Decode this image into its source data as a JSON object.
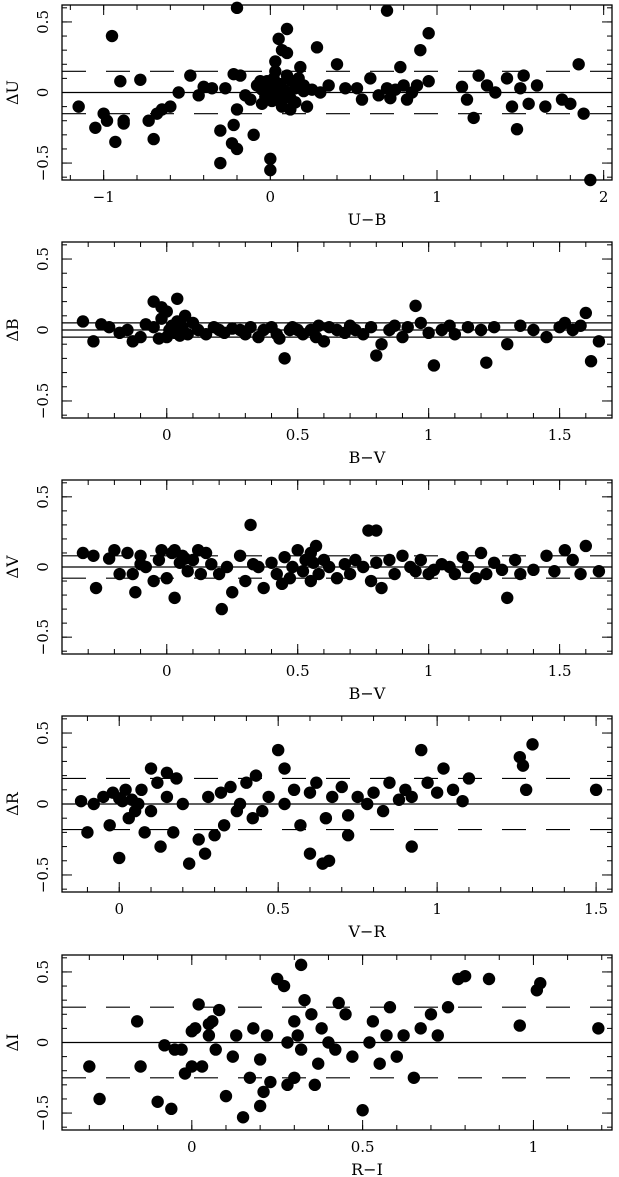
{
  "chart_data": [
    {
      "type": "scatter",
      "xlabel": "U−B",
      "ylabel": "ΔU",
      "xlim": [
        -1.25,
        2.05
      ],
      "ylim": [
        -0.62,
        0.62
      ],
      "xticks": [
        -1,
        0,
        1,
        2
      ],
      "xtick_labels": [
        "−1",
        "0",
        "1",
        "2"
      ],
      "yticks": [
        -0.5,
        0,
        0.5
      ],
      "ytick_labels": [
        "−0.5",
        "0",
        "0.5"
      ],
      "reference_lines": [
        {
          "y": 0,
          "style": "solid"
        },
        {
          "y": 0.15,
          "style": "dashed"
        },
        {
          "y": -0.15,
          "style": "dashed"
        }
      ],
      "x": [
        -0.95,
        -0.9,
        -0.88,
        -0.2,
        0.05,
        0.1,
        0.7,
        0.95,
        -1.15,
        -1.05,
        -1.0,
        -0.98,
        -0.93,
        -0.88,
        -0.78,
        -0.73,
        -0.68,
        -0.6,
        -0.55,
        -0.48,
        -0.43,
        -0.4,
        -0.35,
        -0.3,
        -0.27,
        -0.22,
        -0.22,
        -0.2,
        -0.18,
        -0.15,
        -0.12,
        -0.1,
        -0.08,
        -0.05,
        -0.05,
        -0.03,
        -0.02,
        -0.01,
        0.0,
        0.0,
        0.01,
        0.02,
        0.03,
        0.03,
        0.04,
        0.05,
        0.06,
        0.07,
        0.08,
        0.1,
        0.1,
        0.12,
        0.13,
        0.15,
        0.15,
        0.17,
        0.18,
        0.2,
        0.22,
        0.25,
        0.28,
        0.3,
        0.35,
        0.4,
        0.45,
        0.52,
        0.55,
        0.6,
        0.65,
        0.7,
        0.72,
        0.75,
        0.78,
        0.8,
        0.82,
        0.85,
        0.88,
        0.9,
        0.95,
        1.15,
        1.18,
        1.22,
        1.25,
        1.3,
        1.35,
        1.42,
        1.45,
        1.48,
        1.5,
        1.52,
        1.55,
        1.6,
        1.65,
        1.75,
        1.8,
        1.85,
        1.88,
        1.92,
        0.03,
        0.07,
        0.1,
        -0.3,
        -0.2,
        -0.23,
        -0.06,
        0.06,
        0.12,
        0.2,
        -0.7,
        -0.65,
        0.0
      ],
      "y": [
        0.4,
        0.08,
        -0.2,
        0.6,
        0.38,
        0.45,
        0.58,
        0.42,
        -0.1,
        -0.25,
        -0.15,
        -0.2,
        -0.35,
        -0.22,
        0.09,
        -0.2,
        -0.15,
        -0.1,
        0.0,
        0.12,
        -0.02,
        0.04,
        0.03,
        -0.5,
        0.03,
        0.13,
        -0.23,
        -0.4,
        0.12,
        -0.02,
        -0.05,
        -0.3,
        0.05,
        -0.08,
        0.02,
        -0.03,
        0.08,
        0.0,
        -0.55,
        0.03,
        -0.06,
        0.1,
        0.15,
        -0.02,
        0.05,
        -0.05,
        0.06,
        -0.1,
        0.02,
        0.0,
        0.12,
        -0.04,
        0.08,
        0.03,
        -0.07,
        0.1,
        0.18,
        0.05,
        -0.1,
        0.02,
        0.32,
        0.0,
        0.05,
        0.2,
        0.03,
        0.03,
        -0.05,
        0.1,
        -0.02,
        0.03,
        -0.04,
        0.02,
        0.18,
        0.05,
        -0.05,
        0.0,
        0.05,
        0.3,
        0.08,
        0.04,
        -0.05,
        -0.18,
        0.12,
        0.05,
        0.0,
        0.1,
        -0.1,
        -0.26,
        0.03,
        0.12,
        -0.08,
        0.05,
        -0.1,
        -0.05,
        -0.08,
        0.2,
        -0.15,
        -0.62,
        0.22,
        0.3,
        0.28,
        -0.27,
        -0.12,
        -0.36,
        0.08,
        -0.05,
        -0.12,
        0.01,
        -0.33,
        -0.12,
        -0.47
      ]
    },
    {
      "type": "scatter",
      "xlabel": "B−V",
      "ylabel": "ΔB",
      "xlim": [
        -0.4,
        1.7
      ],
      "ylim": [
        -0.62,
        0.62
      ],
      "xticks": [
        0,
        0.5,
        1,
        1.5
      ],
      "xtick_labels": [
        "0",
        "0.5",
        "1",
        "1.5"
      ],
      "yticks": [
        -0.5,
        0,
        0.5
      ],
      "ytick_labels": [
        "−0.5",
        "0",
        "0.5"
      ],
      "reference_lines": [
        {
          "y": 0,
          "style": "solid"
        },
        {
          "y": 0.05,
          "style": "solid"
        },
        {
          "y": -0.05,
          "style": "solid"
        }
      ],
      "x": [
        -0.32,
        -0.28,
        -0.25,
        -0.22,
        -0.18,
        -0.15,
        -0.13,
        -0.1,
        -0.08,
        -0.05,
        -0.03,
        -0.02,
        0.0,
        0.01,
        0.02,
        0.03,
        0.04,
        0.05,
        0.06,
        0.07,
        0.08,
        0.1,
        0.12,
        0.15,
        0.18,
        0.2,
        0.22,
        0.25,
        0.28,
        0.3,
        0.32,
        0.35,
        0.37,
        0.4,
        0.42,
        0.43,
        0.45,
        0.47,
        0.48,
        0.5,
        0.52,
        0.55,
        0.57,
        0.58,
        0.6,
        0.62,
        0.65,
        0.68,
        0.7,
        0.72,
        0.75,
        0.78,
        0.8,
        0.82,
        0.85,
        0.87,
        0.9,
        0.92,
        0.95,
        0.97,
        1.0,
        1.02,
        1.05,
        1.08,
        1.1,
        1.15,
        1.2,
        1.22,
        1.25,
        1.3,
        1.35,
        1.4,
        1.45,
        1.5,
        1.52,
        1.55,
        1.58,
        1.6,
        1.62,
        1.65,
        -0.05,
        -0.02,
        0.04,
        0.0
      ],
      "y": [
        0.06,
        -0.08,
        0.04,
        0.02,
        -0.02,
        0.0,
        -0.08,
        -0.05,
        0.04,
        0.02,
        -0.06,
        0.08,
        -0.05,
        0.0,
        0.03,
        -0.02,
        0.06,
        -0.04,
        0.02,
        0.1,
        -0.03,
        0.05,
        0.0,
        -0.03,
        0.02,
        0.0,
        -0.02,
        0.01,
        0.0,
        -0.03,
        0.02,
        -0.05,
        0.0,
        0.02,
        -0.03,
        -0.06,
        -0.2,
        0.0,
        0.02,
        0.0,
        -0.03,
        0.0,
        -0.05,
        0.03,
        -0.08,
        0.02,
        0.0,
        -0.02,
        0.03,
        0.0,
        -0.03,
        0.02,
        -0.18,
        -0.1,
        0.0,
        0.03,
        -0.05,
        0.02,
        0.17,
        0.05,
        -0.02,
        -0.25,
        0.0,
        0.03,
        -0.03,
        0.02,
        0.0,
        -0.23,
        0.02,
        -0.1,
        0.03,
        0.0,
        -0.05,
        0.02,
        0.05,
        0.0,
        0.03,
        0.12,
        -0.22,
        -0.08,
        0.2,
        0.16,
        0.22,
        0.13
      ]
    },
    {
      "type": "scatter",
      "xlabel": "B−V",
      "ylabel": "ΔV",
      "xlim": [
        -0.4,
        1.7
      ],
      "ylim": [
        -0.62,
        0.62
      ],
      "xticks": [
        0,
        0.5,
        1,
        1.5
      ],
      "xtick_labels": [
        "0",
        "0.5",
        "1",
        "1.5"
      ],
      "yticks": [
        -0.5,
        0,
        0.5
      ],
      "ytick_labels": [
        "−0.5",
        "0",
        "0.5"
      ],
      "reference_lines": [
        {
          "y": 0,
          "style": "solid"
        },
        {
          "y": 0.08,
          "style": "dashed"
        },
        {
          "y": -0.08,
          "style": "dashed"
        }
      ],
      "x": [
        0.32,
        0.77,
        0.8,
        -0.32,
        -0.28,
        -0.27,
        -0.22,
        -0.2,
        -0.18,
        -0.15,
        -0.13,
        -0.12,
        -0.1,
        -0.08,
        -0.05,
        -0.03,
        -0.02,
        0.0,
        0.02,
        0.03,
        0.05,
        0.06,
        0.08,
        0.1,
        0.12,
        0.13,
        0.15,
        0.17,
        0.2,
        0.21,
        0.23,
        0.25,
        0.28,
        0.3,
        0.33,
        0.35,
        0.37,
        0.4,
        0.42,
        0.44,
        0.45,
        0.47,
        0.48,
        0.5,
        0.52,
        0.53,
        0.55,
        0.56,
        0.57,
        0.58,
        0.6,
        0.62,
        0.65,
        0.68,
        0.7,
        0.72,
        0.75,
        0.78,
        0.8,
        0.82,
        0.85,
        0.87,
        0.9,
        0.93,
        0.95,
        0.97,
        1.0,
        1.02,
        1.05,
        1.08,
        1.1,
        1.13,
        1.15,
        1.18,
        1.2,
        1.22,
        1.25,
        1.28,
        1.3,
        1.33,
        1.35,
        1.4,
        1.45,
        1.48,
        1.52,
        1.55,
        1.58,
        1.6,
        1.65,
        0.03,
        0.07,
        0.55,
        -0.1
      ],
      "y": [
        0.3,
        0.26,
        0.26,
        0.1,
        0.08,
        -0.15,
        0.06,
        0.12,
        -0.05,
        0.1,
        -0.05,
        -0.18,
        0.08,
        0.0,
        -0.1,
        0.05,
        0.12,
        -0.08,
        0.1,
        -0.22,
        0.03,
        0.08,
        -0.03,
        0.05,
        0.12,
        -0.05,
        0.1,
        0.02,
        -0.05,
        -0.3,
        0.0,
        -0.18,
        0.08,
        -0.1,
        0.02,
        0.0,
        -0.15,
        0.03,
        -0.05,
        -0.12,
        0.07,
        -0.08,
        0.0,
        0.12,
        -0.03,
        0.05,
        -0.1,
        0.03,
        0.15,
        -0.05,
        0.05,
        0.0,
        -0.08,
        0.02,
        -0.05,
        0.05,
        0.0,
        -0.1,
        0.03,
        -0.15,
        0.05,
        -0.05,
        0.08,
        0.0,
        -0.03,
        0.05,
        -0.05,
        -0.02,
        0.02,
        0.0,
        -0.05,
        0.07,
        0.0,
        -0.08,
        0.1,
        -0.05,
        0.03,
        -0.02,
        -0.22,
        0.05,
        -0.05,
        -0.02,
        0.08,
        -0.03,
        0.12,
        0.05,
        -0.05,
        0.15,
        -0.03,
        0.12,
        0.06,
        0.1,
        0.02
      ]
    },
    {
      "type": "scatter",
      "xlabel": "V−R",
      "ylabel": "ΔR",
      "xlim": [
        -0.18,
        1.55
      ],
      "ylim": [
        -0.62,
        0.62
      ],
      "xticks": [
        0,
        0.5,
        1,
        1.5
      ],
      "xtick_labels": [
        "0",
        "0.5",
        "1",
        "1.5"
      ],
      "yticks": [
        -0.5,
        0,
        0.5
      ],
      "ytick_labels": [
        "−0.5",
        "0",
        "0.5"
      ],
      "reference_lines": [
        {
          "y": 0,
          "style": "solid"
        },
        {
          "y": 0.18,
          "style": "dashed"
        },
        {
          "y": -0.18,
          "style": "dashed"
        }
      ],
      "x": [
        -0.12,
        -0.1,
        -0.08,
        -0.05,
        -0.03,
        -0.02,
        0.0,
        0.0,
        0.01,
        0.02,
        0.03,
        0.04,
        0.05,
        0.06,
        0.07,
        0.08,
        0.1,
        0.1,
        0.12,
        0.13,
        0.15,
        0.15,
        0.17,
        0.18,
        0.2,
        0.22,
        0.25,
        0.27,
        0.28,
        0.3,
        0.32,
        0.33,
        0.35,
        0.37,
        0.38,
        0.4,
        0.42,
        0.43,
        0.45,
        0.47,
        0.5,
        0.52,
        0.55,
        0.57,
        0.6,
        0.62,
        0.65,
        0.67,
        0.7,
        0.72,
        0.75,
        0.78,
        0.8,
        0.83,
        0.85,
        0.88,
        0.9,
        0.92,
        0.95,
        0.97,
        1.0,
        1.02,
        1.05,
        1.08,
        1.1,
        1.26,
        1.27,
        1.28,
        1.3,
        1.5,
        0.52,
        0.66,
        0.6,
        0.64,
        0.72,
        0.92
      ],
      "y": [
        0.02,
        -0.2,
        0.0,
        0.05,
        -0.15,
        0.08,
        -0.38,
        0.04,
        0.02,
        0.1,
        -0.1,
        0.03,
        -0.05,
        0.0,
        0.1,
        -0.2,
        0.25,
        -0.05,
        0.15,
        -0.3,
        0.05,
        0.22,
        -0.2,
        0.18,
        0.0,
        -0.42,
        -0.25,
        -0.35,
        0.05,
        -0.22,
        0.08,
        -0.15,
        0.12,
        -0.05,
        0.0,
        0.15,
        -0.1,
        0.2,
        -0.05,
        0.05,
        0.38,
        0.0,
        0.1,
        -0.15,
        0.08,
        0.15,
        -0.1,
        0.05,
        0.12,
        -0.08,
        0.05,
        0.0,
        0.08,
        -0.05,
        0.15,
        0.03,
        0.1,
        -0.3,
        0.38,
        0.15,
        0.08,
        0.25,
        0.1,
        0.02,
        0.18,
        0.33,
        0.27,
        0.1,
        0.42,
        0.1,
        0.25,
        -0.4,
        -0.35,
        -0.42,
        -0.22,
        0.05
      ]
    },
    {
      "type": "scatter",
      "xlabel": "R−I",
      "ylabel": "ΔI",
      "xlim": [
        -0.38,
        1.23
      ],
      "ylim": [
        -0.62,
        0.62
      ],
      "xticks": [
        0,
        0.5,
        1
      ],
      "xtick_labels": [
        "0",
        "0.5",
        "1"
      ],
      "yticks": [
        -0.5,
        0,
        0.5
      ],
      "ytick_labels": [
        "−0.5",
        "0",
        "0.5"
      ],
      "reference_lines": [
        {
          "y": 0,
          "style": "solid"
        },
        {
          "y": 0.25,
          "style": "dashed"
        },
        {
          "y": -0.25,
          "style": "dashed"
        }
      ],
      "x": [
        -0.3,
        -0.27,
        -0.16,
        -0.15,
        -0.1,
        -0.08,
        -0.06,
        -0.05,
        -0.03,
        -0.02,
        0.0,
        0.0,
        0.01,
        0.02,
        0.03,
        0.05,
        0.06,
        0.07,
        0.08,
        0.1,
        0.12,
        0.13,
        0.15,
        0.17,
        0.18,
        0.2,
        0.21,
        0.22,
        0.23,
        0.25,
        0.27,
        0.28,
        0.3,
        0.3,
        0.31,
        0.32,
        0.33,
        0.35,
        0.37,
        0.38,
        0.4,
        0.42,
        0.43,
        0.45,
        0.47,
        0.5,
        0.52,
        0.53,
        0.55,
        0.57,
        0.58,
        0.6,
        0.62,
        0.65,
        0.67,
        0.7,
        0.72,
        0.75,
        0.78,
        0.8,
        0.87,
        0.96,
        1.01,
        1.02,
        1.19,
        0.32,
        0.28,
        0.2,
        0.05,
        0.36
      ],
      "y": [
        -0.17,
        -0.4,
        0.15,
        -0.17,
        -0.42,
        -0.02,
        -0.47,
        -0.05,
        -0.05,
        -0.22,
        0.08,
        -0.17,
        0.1,
        0.27,
        -0.17,
        0.13,
        0.15,
        -0.05,
        0.23,
        -0.38,
        -0.1,
        0.05,
        -0.53,
        -0.25,
        0.1,
        -0.12,
        -0.35,
        0.05,
        -0.28,
        0.45,
        0.4,
        0.0,
        0.15,
        -0.25,
        0.05,
        0.55,
        0.3,
        0.2,
        -0.15,
        0.1,
        0.0,
        -0.05,
        0.28,
        0.2,
        -0.1,
        -0.48,
        0.0,
        0.15,
        -0.15,
        0.05,
        0.25,
        -0.1,
        0.05,
        -0.25,
        0.1,
        0.2,
        0.05,
        0.25,
        0.45,
        0.47,
        0.45,
        0.12,
        0.37,
        0.42,
        0.1,
        -0.05,
        -0.3,
        -0.45,
        0.05,
        -0.3
      ]
    }
  ]
}
